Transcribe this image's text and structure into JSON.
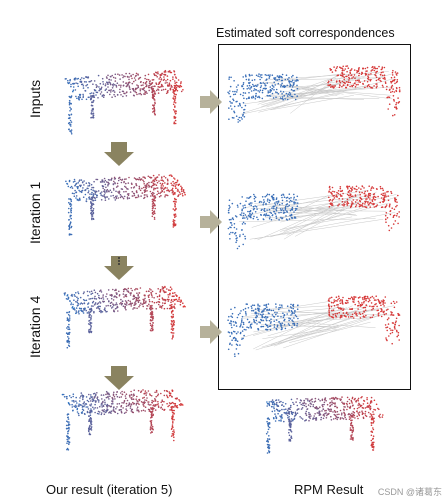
{
  "row_labels": [
    "Inputs",
    "Iteration 1",
    "Iteration 4"
  ],
  "box_title": "Estimated soft correspondences",
  "captions": {
    "ours": "Our result (iteration 5)",
    "rpm": "RPM Result"
  },
  "watermark": "CSDN @诸葛东",
  "colors": {
    "blue": "#3a6fb8",
    "red": "#d63a3a",
    "arrow": "#8a8360",
    "arrow_light": "#b6b19a",
    "line": "#c9c9c9"
  }
}
